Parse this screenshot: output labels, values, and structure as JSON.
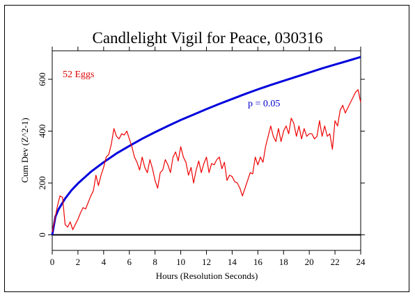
{
  "chart_data": {
    "type": "line",
    "title": "Candlelight Vigil for Peace, 030316",
    "xlabel": "Hours (Resolution Seconds)",
    "ylabel": "Cum Dev (Z^2-1)",
    "xlim": [
      0,
      24
    ],
    "ylim": [
      -60,
      710
    ],
    "x_ticks": [
      0,
      2,
      4,
      6,
      8,
      10,
      12,
      14,
      16,
      18,
      20,
      22,
      24
    ],
    "y_ticks": [
      0,
      200,
      400,
      600
    ],
    "grid": false,
    "annotations": [
      {
        "text": "52 Eggs",
        "color": "#dd0000"
      },
      {
        "text": "p = 0.05",
        "color": "#0000cc"
      }
    ],
    "series": [
      {
        "color": "#0000dd",
        "x": [
          0,
          0.25,
          0.5,
          1,
          1.5,
          2,
          3,
          4,
          5,
          6,
          7,
          8,
          9,
          10,
          11,
          12,
          13,
          14,
          15,
          16,
          17,
          18,
          19,
          20,
          21,
          22,
          23,
          24
        ],
        "y": [
          0,
          70,
          99,
          140,
          172,
          198,
          243,
          280,
          314,
          343,
          371,
          396,
          420,
          443,
          464,
          485,
          505,
          524,
          543,
          561,
          578,
          594,
          610,
          626,
          642,
          657,
          671,
          686
        ]
      },
      {
        "color": "#ee0000",
        "x": [
          0,
          0.2,
          0.4,
          0.6,
          0.8,
          1.0,
          1.2,
          1.4,
          1.6,
          1.8,
          2.0,
          2.2,
          2.4,
          2.6,
          2.8,
          3.0,
          3.2,
          3.4,
          3.6,
          3.8,
          4.0,
          4.2,
          4.4,
          4.6,
          4.8,
          5.0,
          5.2,
          5.4,
          5.6,
          5.8,
          6.0,
          6.2,
          6.4,
          6.6,
          6.8,
          7.0,
          7.2,
          7.4,
          7.6,
          7.8,
          8.0,
          8.2,
          8.4,
          8.6,
          8.8,
          9.0,
          9.2,
          9.4,
          9.6,
          9.8,
          10.0,
          10.2,
          10.4,
          10.6,
          10.8,
          11.0,
          11.2,
          11.4,
          11.6,
          11.8,
          12.0,
          12.2,
          12.4,
          12.6,
          12.8,
          13.0,
          13.2,
          13.4,
          13.6,
          13.8,
          14.0,
          14.2,
          14.4,
          14.6,
          14.8,
          15.0,
          15.2,
          15.4,
          15.6,
          15.8,
          16.0,
          16.2,
          16.4,
          16.6,
          16.8,
          17.0,
          17.2,
          17.4,
          17.6,
          17.8,
          18.0,
          18.2,
          18.4,
          18.6,
          18.8,
          19.0,
          19.2,
          19.4,
          19.6,
          19.8,
          20.0,
          20.2,
          20.4,
          20.6,
          20.8,
          21.0,
          21.2,
          21.4,
          21.6,
          21.8,
          22.0,
          22.2,
          22.4,
          22.6,
          22.8,
          23.0,
          23.2,
          23.4,
          23.6,
          23.8,
          24.0
        ],
        "y": [
          10,
          60,
          110,
          150,
          145,
          40,
          30,
          50,
          20,
          40,
          60,
          85,
          105,
          100,
          125,
          150,
          170,
          230,
          190,
          230,
          260,
          300,
          310,
          350,
          410,
          380,
          370,
          390,
          385,
          400,
          370,
          340,
          300,
          280,
          250,
          300,
          260,
          240,
          290,
          255,
          210,
          180,
          240,
          250,
          290,
          270,
          240,
          300,
          320,
          285,
          340,
          300,
          280,
          230,
          260,
          200,
          250,
          285,
          240,
          275,
          300,
          240,
          275,
          270,
          290,
          300,
          255,
          280,
          210,
          230,
          225,
          205,
          200,
          180,
          150,
          180,
          210,
          240,
          235,
          300,
          270,
          300,
          280,
          340,
          380,
          420,
          380,
          360,
          410,
          360,
          400,
          420,
          390,
          450,
          430,
          380,
          420,
          370,
          410,
          380,
          390,
          390,
          370,
          380,
          440,
          380,
          420,
          380,
          390,
          330,
          440,
          420,
          480,
          500,
          470,
          490,
          510,
          530,
          550,
          560,
          510
        ]
      }
    ]
  }
}
